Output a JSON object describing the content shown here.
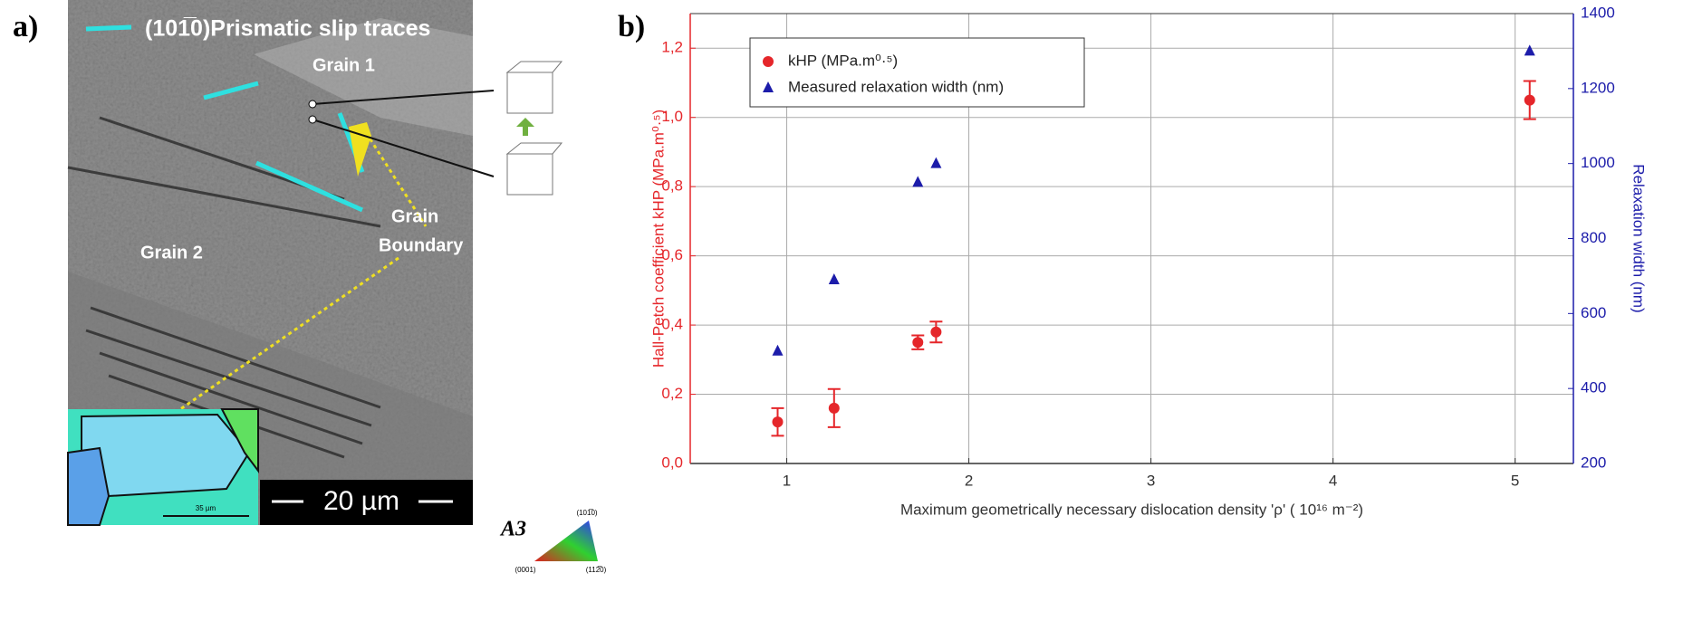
{
  "panel_labels": [
    "a)",
    "b)"
  ],
  "micrograph": {
    "slip_traces": "(101̅0)Prismatic slip traces",
    "grain_1": "Grain 1",
    "grain_2": "Grain 2",
    "grain_boundary": [
      "Grain",
      "Boundary"
    ],
    "scale_bar": "20 µm",
    "inset_scale": "35 µm",
    "ipf_title": "A3",
    "ipf_corners": [
      "(101̅0)",
      "(0001)",
      "(112̅0)"
    ]
  },
  "chart_data": {
    "type": "scatter",
    "xlabel": "Maximum geometrically necessary dislocation density 'ρ' ( 10¹⁶ m⁻²)",
    "ylabel": "Hall-Petch coefficient kHP (MPa.m⁰·⁵)",
    "y2label": "Relaxation width (nm)",
    "x": [
      0.95,
      1.26,
      1.72,
      1.82,
      5.08
    ],
    "series": [
      {
        "name": "kHP (MPa.m⁰·⁵)",
        "color": "#e5262a",
        "marker": "circle",
        "values": [
          0.12,
          0.16,
          0.35,
          0.38,
          1.05
        ],
        "errors": [
          0.04,
          0.055,
          0.02,
          0.03,
          0.055
        ]
      },
      {
        "name": "Measured relaxation width (nm)",
        "color": "#1c1caa",
        "marker": "triangle",
        "axis": "y2",
        "values": [
          500,
          690,
          950,
          1000,
          1300
        ]
      }
    ],
    "xlim": [
      0.47,
      5.32
    ],
    "xticks": [
      1,
      2,
      3,
      4,
      5
    ],
    "ylim": [
      0,
      1.3
    ],
    "yticks": [
      {
        "value": 0,
        "label": "0,0"
      },
      {
        "value": 0.2,
        "label": "0,2"
      },
      {
        "value": 0.4,
        "label": "0,4"
      },
      {
        "value": 0.6,
        "label": "0,6"
      },
      {
        "value": 0.8,
        "label": "0,8"
      },
      {
        "value": 1.0,
        "label": "1,0"
      },
      {
        "value": 1.2,
        "label": "1,2"
      }
    ],
    "y2lim": [
      200,
      1400
    ],
    "y2ticks": [
      200,
      400,
      600,
      800,
      1000,
      1200,
      1400
    ],
    "grid": true,
    "legend": "upper left"
  }
}
